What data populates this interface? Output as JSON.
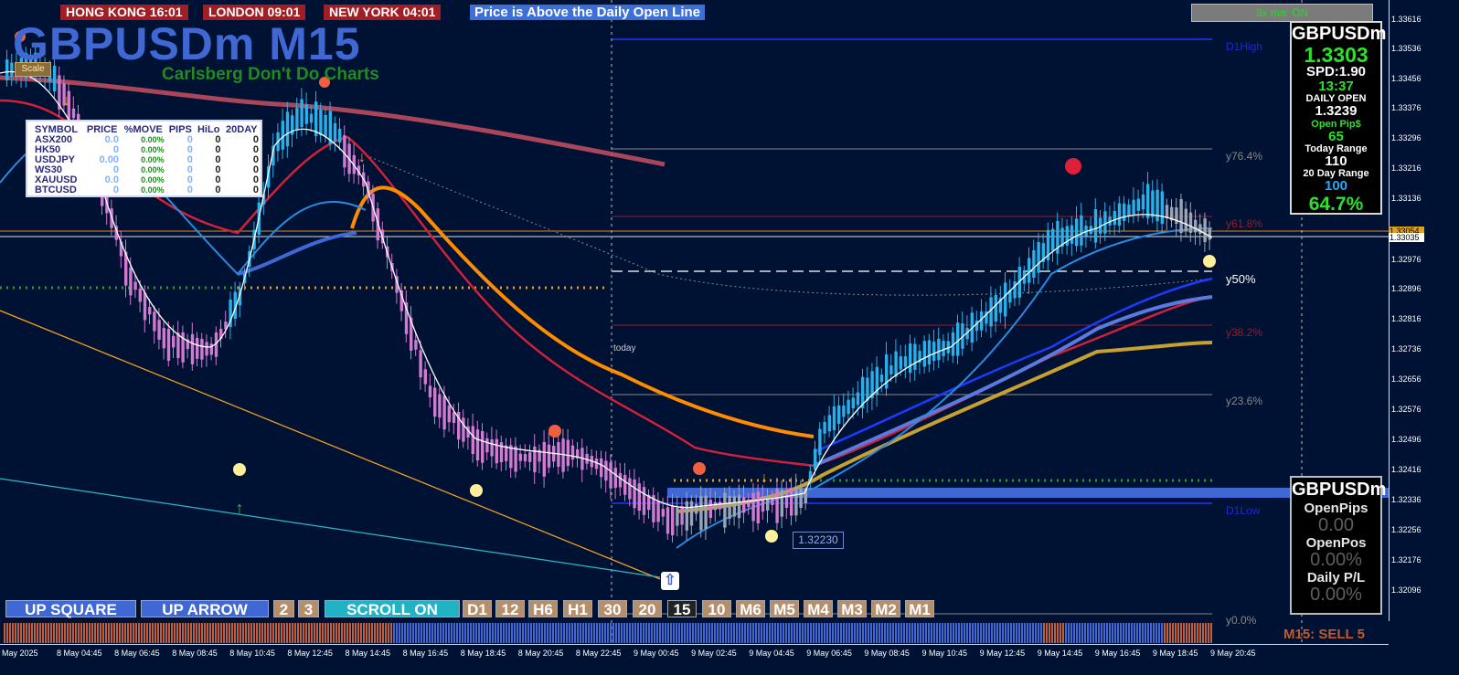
{
  "clocks": [
    {
      "label": "HONG KONG  16:01"
    },
    {
      "label": "LONDON  09:01"
    },
    {
      "label": "NEW YORK  04:01"
    }
  ],
  "alert": "Price is Above the Daily Open Line",
  "ma_toggle": "3x ma: ON",
  "title": "GBPUSDm M15",
  "subtitle": "Carlsberg Don't Do Charts",
  "scale_button": "Scale",
  "symbol_table": {
    "headers": [
      "SYMBOL",
      "PRICE",
      "%MOVE",
      "PIPS",
      "HiLo",
      "20DAY"
    ],
    "rows": [
      [
        "ASX200",
        "0.0",
        "0.00%",
        "0",
        "0",
        "0"
      ],
      [
        "HK50",
        "0",
        "0.00%",
        "0",
        "0",
        "0"
      ],
      [
        "USDJPY",
        "0.00",
        "0.00%",
        "0",
        "0",
        "0"
      ],
      [
        "WS30",
        "0",
        "0.00%",
        "0",
        "0",
        "0"
      ],
      [
        "XAUUSD",
        "0.0",
        "0.00%",
        "0",
        "0",
        "0"
      ],
      [
        "BTCUSD",
        "0",
        "0.00%",
        "0",
        "0",
        "0"
      ]
    ]
  },
  "info_panel": {
    "symbol": "GBPUSDm",
    "price": "1.3303",
    "spread": "SPD:1.90",
    "time": "13:37",
    "daily_open_label": "DAILY OPEN",
    "daily_open": "1.3239",
    "open_pips_label": "Open Pip$",
    "open_pips": "65",
    "today_range_label": "Today Range",
    "today_range": "110",
    "range20_label": "20 Day Range",
    "range20": "100",
    "pct": "64.7%"
  },
  "position_panel": {
    "symbol": "GBPUSDm",
    "open_pips_label": "OpenPips",
    "open_pips": "0.00",
    "open_pos_label": "OpenPos",
    "open_pos": "0.00%",
    "daily_pl_label": "Daily P/L",
    "daily_pl": "0.00%"
  },
  "buttons": {
    "up_square": "UP SQUARE",
    "up_arrow": "UP ARROW",
    "two": "2",
    "three": "3",
    "scroll": "SCROLL ON",
    "timeframes": [
      "D1",
      "12",
      "H6",
      "H1",
      "30",
      "20",
      "15",
      "10",
      "M6",
      "M5",
      "M4",
      "M3",
      "M2",
      "M1"
    ]
  },
  "levels": {
    "d1high": "D1High",
    "y764": "y76.4%",
    "y618": "y61.8%",
    "y50": "y50%",
    "y382": "y38.2%",
    "y236": "y23.6%",
    "d1low": "D1Low",
    "y0": "y0.0%"
  },
  "today_label": "today",
  "price_box": "1.32230",
  "price_axis": {
    "ticks": [
      "1.33616",
      "1.33536",
      "1.33456",
      "1.33376",
      "1.33296",
      "1.33216",
      "1.33136",
      "1.33054",
      "1.33035",
      "1.32976",
      "1.32896",
      "1.32816",
      "1.32736",
      "1.32656",
      "1.32576",
      "1.32496",
      "1.32416",
      "1.32336",
      "1.32256",
      "1.32176",
      "1.32096"
    ],
    "current_tag": "1.33054",
    "bid_tag": "1.33035"
  },
  "time_axis": [
    "May 2025",
    "8 May 04:45",
    "8 May 06:45",
    "8 May 08:45",
    "8 May 10:45",
    "8 May 12:45",
    "8 May 14:45",
    "8 May 16:45",
    "8 May 18:45",
    "8 May 20:45",
    "8 May 22:45",
    "9 May 00:45",
    "9 May 02:45",
    "9 May 04:45",
    "9 May 06:45",
    "9 May 08:45",
    "9 May 10:45",
    "9 May 12:45",
    "9 May 14:45",
    "9 May 16:45",
    "9 May 18:45",
    "9 May 20:45"
  ],
  "signal": "M15: SELL 5",
  "colors": {
    "background": "#001233",
    "bull_candle": "#2ab0e8",
    "bear_candle": "#d07ad0",
    "ma_red": "#d1203a",
    "ma_orange": "#ff8c00",
    "ma_blue": "#1a3cff",
    "ma_gold": "#c8a030"
  }
}
